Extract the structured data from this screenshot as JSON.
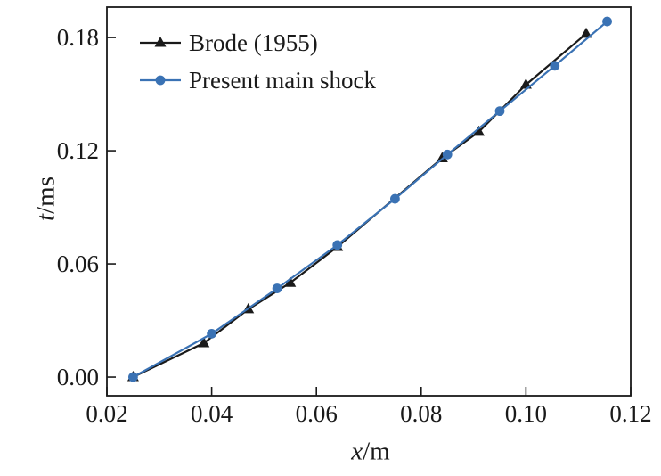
{
  "chart_data": {
    "type": "line",
    "xlabel": "x/m",
    "ylabel": "t/ms",
    "axis_symbols": {
      "x": "x",
      "x_unit": "/m",
      "y": "t",
      "y_unit": "/ms"
    },
    "xlim": [
      0.02,
      0.12
    ],
    "ylim": [
      -0.0099,
      0.1961
    ],
    "x_ticks": {
      "values": [
        0.02,
        0.04,
        0.06,
        0.08,
        0.1,
        0.12
      ],
      "labels": [
        "0.02",
        "0.04",
        "0.06",
        "0.08",
        "0.10",
        "0.12"
      ]
    },
    "y_ticks": {
      "values": [
        0.0,
        0.06,
        0.12,
        0.18
      ],
      "labels": [
        "0.00",
        "0.06",
        "0.12",
        "0.18"
      ]
    },
    "grid": false,
    "legend_position": "upper-left",
    "axis_color": "#1a1a1a",
    "series": [
      {
        "name": "Brode (1955)",
        "color": "#1a1a1a",
        "marker": "triangle",
        "points": [
          [
            0.025,
            0.0
          ],
          [
            0.0385,
            0.018
          ],
          [
            0.047,
            0.036
          ],
          [
            0.055,
            0.05
          ],
          [
            0.064,
            0.069
          ],
          [
            0.084,
            0.116
          ],
          [
            0.091,
            0.13
          ],
          [
            0.1,
            0.155
          ],
          [
            0.1115,
            0.182
          ]
        ]
      },
      {
        "name": "Present main shock",
        "color": "#3a72b4",
        "marker": "circle",
        "points": [
          [
            0.025,
            0.0
          ],
          [
            0.04,
            0.023
          ],
          [
            0.0525,
            0.047
          ],
          [
            0.064,
            0.07
          ],
          [
            0.075,
            0.0945
          ],
          [
            0.085,
            0.118
          ],
          [
            0.095,
            0.141
          ],
          [
            0.1055,
            0.165
          ],
          [
            0.1155,
            0.1885
          ]
        ]
      }
    ]
  }
}
